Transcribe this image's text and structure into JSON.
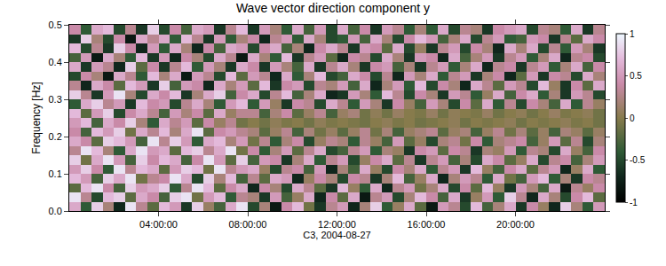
{
  "chart_data": {
    "type": "heatmap",
    "title": "Wave vector direction component y",
    "x_label": "C3, 2004-08-27",
    "y_label": "Frequency [Hz]",
    "x_edges": [
      0,
      0.5,
      1,
      1.5,
      2,
      2.5,
      3,
      3.5,
      4,
      4.5,
      5,
      5.5,
      6,
      6.5,
      7,
      7.5,
      8,
      8.5,
      9,
      9.5,
      10,
      10.5,
      11,
      11.5,
      12,
      12.5,
      13,
      13.5,
      14,
      14.5,
      15,
      15.5,
      16,
      16.5,
      17,
      17.5,
      18,
      18.5,
      19,
      19.5,
      20,
      20.5,
      21,
      21.5,
      22,
      22.5,
      23,
      23.5,
      24
    ],
    "y_edges": [
      0,
      0.025,
      0.05,
      0.075,
      0.1,
      0.125,
      0.15,
      0.175,
      0.2,
      0.225,
      0.25,
      0.275,
      0.3,
      0.325,
      0.35,
      0.375,
      0.4,
      0.425,
      0.45,
      0.475,
      0.5
    ],
    "z": [
      [
        0.6,
        -0.4,
        0.8,
        0.2,
        -0.7,
        0.9,
        0.3,
        -0.2,
        0.7,
        0.5,
        -0.6,
        0.8,
        0.1,
        -0.3,
        0.6,
        0.9,
        -0.5,
        0.2,
        -0.8,
        0.4,
        0.7,
        -0.1,
        -0.6,
        0.3,
        0.5,
        -0.7,
        0.2,
        0.8,
        -0.4,
        0.1,
        0.6,
        -0.2,
        -0.8,
        0.5,
        0.3,
        -0.5,
        0.7,
        -0.3,
        0.2,
        0.6,
        -0.6,
        0.4,
        0.1,
        -0.7,
        0.8,
        0.2,
        -0.4,
        0.5
      ],
      [
        0.9,
        0.3,
        -0.5,
        0.7,
        0.8,
        -0.2,
        0.6,
        0.4,
        -0.3,
        0.8,
        0.9,
        -0.1,
        0.5,
        0.7,
        -0.4,
        0.3,
        0.2,
        -0.6,
        0.5,
        -0.3,
        0.1,
        0.6,
        -0.7,
        0.4,
        -0.2,
        0.6,
        -0.8,
        0.3,
        0.5,
        -0.5,
        0.2,
        0.7,
        0.4,
        -0.3,
        0.6,
        -0.6,
        0.1,
        0.5,
        -0.4,
        0.8,
        0.3,
        -0.7,
        0.6,
        0.2,
        -0.5,
        0.4,
        0.7,
        -0.2
      ],
      [
        -0.2,
        0.7,
        0.9,
        0.4,
        -0.3,
        0.8,
        0.5,
        0.6,
        0.8,
        -0.4,
        0.3,
        0.9,
        0.7,
        -0.2,
        0.4,
        0.6,
        -0.7,
        0.4,
        0.2,
        -0.5,
        0.6,
        0.3,
        -0.2,
        -0.6,
        0.7,
        0.1,
        -0.4,
        0.6,
        -0.7,
        0.3,
        0.5,
        -0.1,
        0.2,
        0.6,
        -0.5,
        0.4,
        -0.2,
        0.7,
        0.1,
        -0.6,
        0.5,
        0.2,
        -0.3,
        0.6,
        -0.8,
        0.3,
        0.1,
        0.4
      ],
      [
        0.7,
        0.5,
        -0.3,
        0.8,
        0.6,
        0.9,
        -0.1,
        0.3,
        0.4,
        0.9,
        0.6,
        -0.5,
        0.8,
        0.2,
        0.7,
        -0.3,
        0.3,
        -0.2,
        0.6,
        0.5,
        -0.7,
        0.1,
        0.4,
        0.2,
        -0.5,
        0.4,
        0.3,
        -0.6,
        0.2,
        0.7,
        -0.3,
        0.1,
        0.6,
        -0.7,
        0.2,
        0.5,
        0.3,
        -0.4,
        0.6,
        -0.1,
        -0.3,
        0.5,
        0.7,
        -0.4,
        0.2,
        -0.6,
        0.4,
        0.3
      ],
      [
        0.5,
        0.8,
        0.4,
        -0.4,
        0.9,
        0.3,
        0.7,
        0.6,
        -0.2,
        0.5,
        0.8,
        0.7,
        -0.1,
        0.9,
        0.3,
        0.5,
        0.6,
        0.1,
        -0.5,
        0.3,
        0.4,
        -0.3,
        0.5,
        -0.7,
        0.2,
        -0.3,
        0.6,
        0.1,
        -0.5,
        0.4,
        0.2,
        0.6,
        -0.4,
        0.3,
        0.5,
        -0.6,
        0.7,
        0.1,
        -0.3,
        0.4,
        0.6,
        -0.2,
        0.3,
        0.5,
        -0.7,
        0.1,
        0.6,
        -0.4
      ],
      [
        0.8,
        -0.1,
        0.6,
        0.9,
        0.5,
        -0.3,
        0.8,
        0.4,
        0.7,
        0.6,
        -0.3,
        0.4,
        0.9,
        0.5,
        -0.2,
        0.8,
        -0.3,
        0.5,
        0.4,
        -0.6,
        0.2,
        0.6,
        -0.4,
        0.3,
        0.5,
        -0.5,
        0.1,
        0.4,
        0.6,
        -0.2,
        0.3,
        -0.6,
        0.3,
        0.5,
        -0.3,
        0.2,
        -0.5,
        0.6,
        0.4,
        -0.2,
        0.1,
        0.6,
        -0.5,
        0.3,
        0.4,
        -0.3,
        0.2,
        0.5
      ],
      [
        0.3,
        0.9,
        0.7,
        0.2,
        -0.4,
        0.6,
        0.9,
        0.5,
        0.6,
        -0.2,
        0.7,
        0.8,
        0.3,
        0.6,
        0.9,
        -0.1,
        0.4,
        -0.4,
        0.2,
        0.5,
        -0.2,
        0.3,
        0.6,
        -0.5,
        -0.3,
        0.3,
        0.5,
        -0.4,
        0.2,
        0.1,
        -0.6,
        0.4,
        0.5,
        -0.2,
        0.4,
        0.3,
        -0.6,
        0.2,
        0.1,
        0.5,
        -0.4,
        0.3,
        0.2,
        -0.5,
        0.6,
        0.1,
        -0.3,
        0.4
      ],
      [
        0.6,
        0.4,
        -0.2,
        0.8,
        0.7,
        0.5,
        -0.3,
        0.9,
        0.3,
        0.8,
        0.5,
        -0.4,
        0.6,
        0.7,
        0.2,
        0.5,
        -0.1,
        0.3,
        -0.4,
        0.2,
        0.4,
        -0.5,
        0.1,
        0.3,
        0.2,
        -0.4,
        0.3,
        0.1,
        -0.3,
        0.5,
        -0.2,
        0.1,
        -0.5,
        0.2,
        0.3,
        -0.1,
        0.4,
        -0.4,
        0.2,
        0.3,
        0.4,
        -0.3,
        0.1,
        0.5,
        -0.2,
        0.3,
        -0.5,
        0.2
      ],
      [
        0.4,
        -0.3,
        0.7,
        0.5,
        0.8,
        -0.1,
        0.6,
        0.3,
        0.7,
        0.2,
        0.6,
        0.9,
        -0.2,
        0.4,
        0.5,
        0.3,
        0.2,
        -0.2,
        0.1,
        0.3,
        -0.3,
        0.2,
        -0.1,
        0.1,
        -0.2,
        0.1,
        0.3,
        -0.1,
        0.2,
        -0.3,
        0.1,
        0.2,
        0.3,
        -0.2,
        0.1,
        0.2,
        -0.3,
        0.1,
        0.3,
        -0.1,
        0.2,
        -0.2,
        0.1,
        -0.3,
        0.2,
        0.1,
        -0.2,
        0.1
      ],
      [
        0.5,
        0.7,
        -0.3,
        0.6,
        0.4,
        0.8,
        0.2,
        -0.4,
        0.6,
        0.3,
        0.5,
        -0.2,
        0.4,
        0.1,
        0.3,
        -0.1,
        0,
        -0.1,
        0.05,
        -0.05,
        0,
        -0.1,
        0.05,
        -0.05,
        0,
        -0.05,
        -0.1,
        0,
        0.05,
        -0.05,
        0,
        -0.1,
        -0.05,
        0,
        0.05,
        -0.1,
        0,
        -0.05,
        0,
        0.05,
        -0.1,
        0,
        -0.05,
        0,
        0.05,
        -0.05,
        0,
        -0.1
      ],
      [
        0.7,
        -0.2,
        0.5,
        0.8,
        -0.5,
        0.4,
        0.6,
        0.3,
        -0.3,
        0.5,
        0.2,
        0.4,
        -0.2,
        0.6,
        0.1,
        0.3,
        0.3,
        -0.3,
        0.2,
        0.4,
        -0.2,
        0.1,
        0.3,
        -0.3,
        0.1,
        0.2,
        -0.1,
        0.05,
        -0.1,
        0.1,
        0,
        -0.05,
        0.1,
        -0.1,
        0.05,
        0,
        -0.05,
        0.1,
        -0.1,
        0,
        0.05,
        -0.1,
        0,
        0.1,
        -0.05,
        0,
        0.05,
        -0.1
      ],
      [
        -0.4,
        0.6,
        0.8,
        0.3,
        0.5,
        -0.6,
        0.7,
        0.4,
        0.5,
        -0.5,
        0.3,
        0.6,
        0.2,
        -0.4,
        0.5,
        0.7,
        -0.4,
        0.5,
        0.1,
        -0.6,
        0.4,
        0.3,
        -0.5,
        0.6,
        0.3,
        -0.4,
        0.5,
        0.2,
        -0.6,
        0.4,
        0.1,
        -0.3,
        0.5,
        0.2,
        -0.5,
        0.4,
        -0.2,
        0.6,
        -0.4,
        0.3,
        -0.5,
        0.4,
        0.2,
        -0.3,
        0.6,
        -0.4,
        0.3,
        0.1
      ],
      [
        0.8,
        0.3,
        -0.6,
        0.5,
        0.9,
        0.2,
        -0.5,
        0.6,
        0.4,
        0.7,
        -0.6,
        0.2,
        0.6,
        0.8,
        -0.3,
        0.4,
        0.6,
        -0.5,
        0.3,
        0.7,
        -0.3,
        0.2,
        0.6,
        -0.7,
        -0.6,
        0.5,
        0.2,
        -0.4,
        0.7,
        0.3,
        -0.5,
        0.4,
        0.2,
        -0.6,
        0.5,
        0.3,
        -0.4,
        0.1,
        0.6,
        -0.3,
        0.4,
        0.6,
        -0.4,
        0.2,
        -0.6,
        0.5,
        0.3,
        -0.5
      ],
      [
        0.3,
        -0.7,
        0.6,
        0.4,
        -0.2,
        0.7,
        0.5,
        -0.6,
        0.8,
        -0.3,
        0.5,
        0.4,
        -0.7,
        0.6,
        0.2,
        0.5,
        -0.2,
        0.7,
        -0.6,
        0.4,
        0.5,
        -0.5,
        0.3,
        0.2,
        0.5,
        -0.3,
        0.6,
        -0.7,
        0.2,
        0.5,
        -0.4,
        0.7,
        -0.5,
        0.4,
        0.2,
        -0.7,
        0.6,
        0.3,
        -0.2,
        0.5,
        0.3,
        -0.5,
        0.7,
        0.1,
        -0.6,
        0.4,
        -0.2,
        0.6
      ],
      [
        -0.5,
        0.4,
        0.2,
        -0.8,
        0.6,
        0.3,
        -0.4,
        0.7,
        0.2,
        0.6,
        -0.8,
        0.5,
        0.3,
        -0.5,
        0.7,
        -0.2,
        0.5,
        0.3,
        -0.7,
        0.6,
        -0.4,
        0.2,
        0.7,
        -0.5,
        -0.3,
        0.6,
        0.4,
        -0.5,
        0.3,
        -0.7,
        0.5,
        0.2,
        0.6,
        -0.4,
        0.3,
        0.5,
        -0.6,
        0.2,
        0.4,
        -0.7,
        -0.2,
        0.5,
        -0.6,
        0.4,
        0.3,
        -0.5,
        0.6,
        0.2
      ],
      [
        0.6,
        -0.6,
        0.5,
        0.3,
        -0.7,
        0.8,
        -0.2,
        0.4,
        -0.6,
        0.3,
        0.7,
        -0.4,
        0.5,
        0.2,
        -0.6,
        0.6,
        0.4,
        -0.6,
        0.5,
        0.2,
        -0.3,
        0.6,
        -0.6,
        0.3,
        0.6,
        0.2,
        -0.6,
        0.4,
        0.5,
        -0.3,
        0.2,
        -0.6,
        0.3,
        0.5,
        -0.4,
        0.2,
        0.6,
        -0.7,
        0.3,
        0.4,
        -0.6,
        0.3,
        0.5,
        -0.4,
        0.2,
        0.6,
        -0.3,
        0.4
      ],
      [
        -0.3,
        0.5,
        -0.8,
        0.6,
        0.2,
        -0.4,
        0.7,
        -0.6,
        0.5,
        -0.7,
        0.4,
        0.2,
        -0.5,
        0.6,
        0.3,
        -0.8,
        0.6,
        0.2,
        -0.4,
        0.7,
        -0.6,
        0.3,
        0.5,
        -0.2,
        -0.7,
        0.4,
        0.3,
        -0.5,
        0.6,
        0.2,
        -0.6,
        0.5,
        0.4,
        -0.7,
        0.6,
        -0.3,
        0.2,
        0.5,
        -0.6,
        0.3,
        0.5,
        -0.4,
        0.2,
        0.6,
        -0.7,
        0.3,
        0.4,
        -0.5
      ],
      [
        0.7,
        -0.5,
        0.3,
        -0.6,
        0.8,
        0.4,
        -0.7,
        0.5,
        -0.4,
        0.6,
        0.2,
        -0.7,
        0.4,
        -0.3,
        0.6,
        0.5,
        -0.5,
        0.4,
        0.6,
        -0.3,
        0.2,
        -0.7,
        0.4,
        0.6,
        0.3,
        -0.6,
        0.5,
        0.4,
        -0.2,
        0.6,
        -0.5,
        0.1,
        -0.6,
        0.3,
        0.5,
        -0.5,
        0.4,
        0.2,
        -0.7,
        0.6,
        0.2,
        0.6,
        -0.5,
        0.3,
        -0.4,
        0.5,
        0.2,
        -0.6
      ],
      [
        -0.6,
        0.8,
        0.2,
        -0.5,
        0.4,
        -0.8,
        0.6,
        0.3,
        0.6,
        -0.4,
        0.7,
        0.3,
        -0.6,
        0.5,
        -0.4,
        0.2,
        0.4,
        -0.7,
        0.3,
        0.5,
        -0.4,
        0.6,
        0.2,
        -0.5,
        -0.4,
        0.5,
        -0.3,
        0.6,
        0.2,
        -0.5,
        0.4,
        0.7,
        0.5,
        -0.3,
        0.2,
        0.6,
        -0.5,
        0.3,
        0.5,
        -0.4,
        -0.3,
        0.5,
        0.4,
        -0.6,
        0.3,
        -0.2,
        0.6,
        0.4
      ],
      [
        0.4,
        -0.4,
        0.6,
        0.7,
        -0.5,
        0.3,
        -0.6,
        0.8,
        -0.5,
        0.4,
        -0.3,
        0.6,
        0.5,
        -0.6,
        0.3,
        0.7,
        -0.6,
        0.5,
        0.2,
        -0.4,
        0.6,
        -0.3,
        0.5,
        -0.5,
        0.6,
        -0.3,
        0.4,
        -0.6,
        0.5,
        0.3,
        -0.4,
        0.2,
        -0.4,
        0.6,
        -0.5,
        0.3,
        0.2,
        -0.6,
        0.4,
        0.5,
        0.6,
        -0.5,
        0.3,
        0.2,
        -0.4,
        0.6,
        -0.6,
        0.3
      ]
    ],
    "xlim": [
      0,
      24
    ],
    "ylim": [
      0,
      0.5
    ],
    "xticks": [
      {
        "value": 4,
        "label": "04:00:00"
      },
      {
        "value": 8,
        "label": "08:00:00"
      },
      {
        "value": 12,
        "label": "12:00:00"
      },
      {
        "value": 16,
        "label": "16:00:00"
      },
      {
        "value": 20,
        "label": "20:00:00"
      }
    ],
    "yticks": [
      {
        "value": 0,
        "label": "0.0"
      },
      0.1,
      0.2,
      0.3,
      0.4,
      0.5
    ],
    "colorbar_range": [
      -1,
      1
    ],
    "colorbar_ticks": [
      -1,
      -0.5,
      0,
      0.5,
      1
    ]
  }
}
